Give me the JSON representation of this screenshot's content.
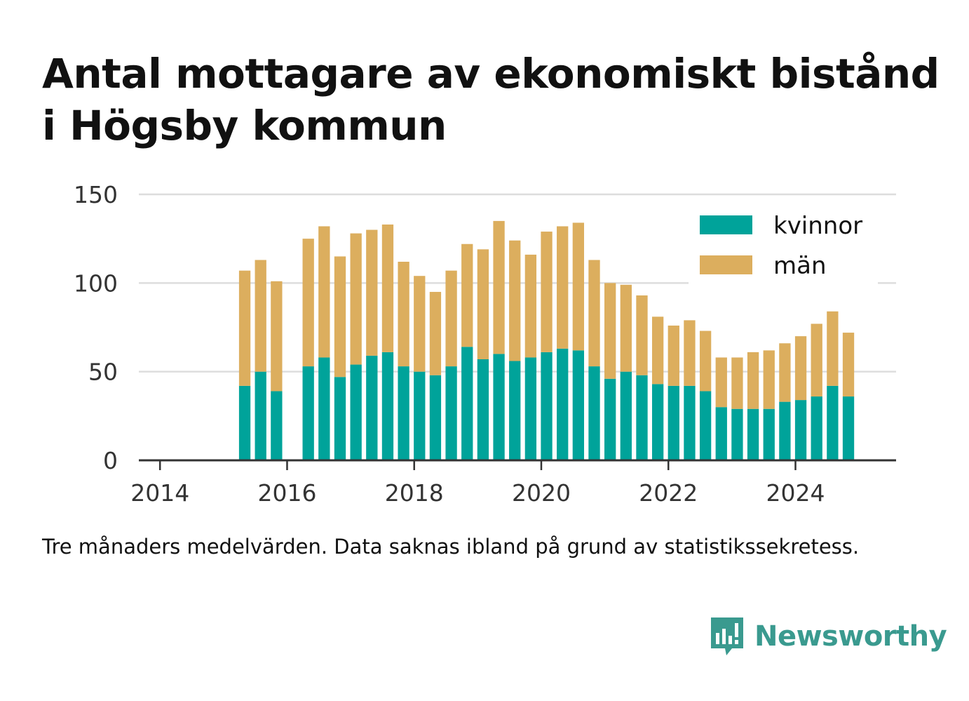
{
  "title": "Antal mottagare av ekonomiskt bistånd i Högsby kommun",
  "note": "Tre månaders medelvärden. Data saknas ibland på grund av statistikssekretess.",
  "brand": {
    "name": "Newsworthy",
    "color": "#3a9a8f",
    "icon": "newsworthy-logo-icon"
  },
  "colors": {
    "kvinnor": "#00a39a",
    "man": "#dcae5e",
    "grid": "#dddddd",
    "axis": "#333333"
  },
  "chart_data": {
    "type": "bar",
    "stacked": true,
    "ylim": [
      0,
      150
    ],
    "yticks": [
      0,
      50,
      100,
      150
    ],
    "xticks": [
      "2014",
      "2016",
      "2018",
      "2020",
      "2022",
      "2024"
    ],
    "xlim": [
      "2013-09",
      "2025-08"
    ],
    "grid": true,
    "legend_position": "top-right",
    "x": [
      "2015-05",
      "2015-08",
      "2015-11",
      "2016-02",
      "2016-05",
      "2016-08",
      "2016-11",
      "2017-02",
      "2017-05",
      "2017-08",
      "2017-11",
      "2018-02",
      "2018-05",
      "2018-08",
      "2018-11",
      "2019-02",
      "2019-05",
      "2019-08",
      "2019-11",
      "2020-02",
      "2020-05",
      "2020-08",
      "2020-11",
      "2021-02",
      "2021-05",
      "2021-08",
      "2021-11",
      "2022-02",
      "2022-05",
      "2022-08",
      "2022-11",
      "2023-02",
      "2023-05",
      "2023-08",
      "2023-11",
      "2024-02",
      "2024-05",
      "2024-08",
      "2024-11"
    ],
    "series": [
      {
        "name": "kvinnor",
        "values": [
          42,
          50,
          39,
          null,
          53,
          58,
          47,
          54,
          59,
          61,
          53,
          50,
          48,
          53,
          64,
          57,
          60,
          56,
          58,
          61,
          63,
          62,
          53,
          46,
          50,
          48,
          43,
          42,
          42,
          39,
          30,
          29,
          29,
          29,
          33,
          34,
          36,
          42,
          36
        ]
      },
      {
        "name": "män",
        "values": [
          65,
          63,
          62,
          null,
          72,
          74,
          68,
          74,
          71,
          72,
          59,
          54,
          47,
          54,
          58,
          62,
          75,
          68,
          58,
          68,
          69,
          72,
          60,
          54,
          49,
          45,
          38,
          34,
          37,
          34,
          28,
          29,
          32,
          33,
          33,
          36,
          41,
          42,
          36
        ]
      }
    ]
  }
}
